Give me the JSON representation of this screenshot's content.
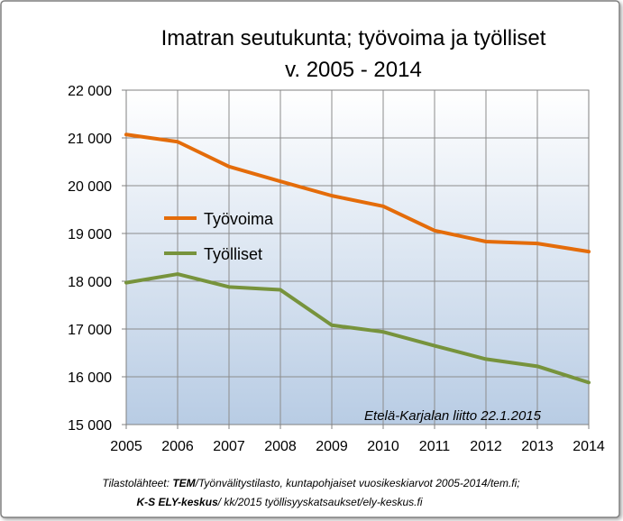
{
  "chart_data": {
    "type": "line",
    "title_line1": "Imatran seutukunta; työvoima ja työlliset",
    "title_line2": "v. 2005 - 2014",
    "x": [
      "2005",
      "2006",
      "2007",
      "2008",
      "2009",
      "2010",
      "2011",
      "2012",
      "2013",
      "2014"
    ],
    "y_ticks": [
      "15 000",
      "16 000",
      "17 000",
      "18 000",
      "19 000",
      "20 000",
      "21 000",
      "22 000"
    ],
    "ylim": [
      15000,
      22000
    ],
    "grid": true,
    "legend_position": "left",
    "series": [
      {
        "name": "Työvoima",
        "color": "#e46c0a",
        "values": [
          21070,
          20920,
          20400,
          20090,
          19790,
          19570,
          19060,
          18830,
          18790,
          18620
        ]
      },
      {
        "name": "Työlliset",
        "color": "#77933c",
        "values": [
          17970,
          18150,
          17880,
          17820,
          17080,
          16940,
          16650,
          16370,
          16220,
          15880
        ]
      }
    ],
    "annotation": "Etelä-Karjalan liitto 22.1.2015"
  },
  "source": {
    "line1_prefix": "Tilastolähteet: ",
    "line1_bold": "TEM",
    "line1_rest": "/Työnvälitystilasto, kuntapohjaiset vuosikeskiarvot 2005-2014/tem.fi;",
    "line2_bold": "K-S ELY-keskus",
    "line2_rest": "/ kk/2015 työllisyyskatsaukset/ely-keskus.fi"
  },
  "colors": {
    "frame_border": "#7f7f7f",
    "plot_top": "#ffffff",
    "plot_bottom": "#b8cce4"
  }
}
